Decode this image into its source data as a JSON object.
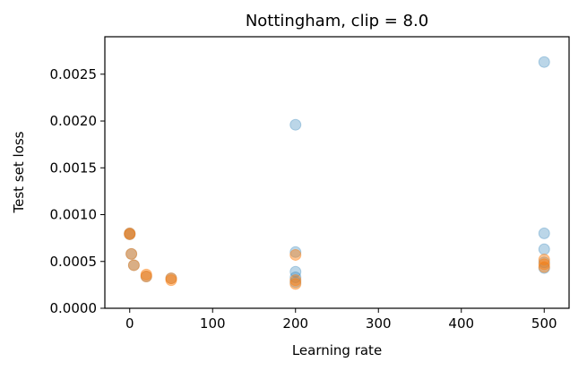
{
  "chart_data": {
    "type": "scatter",
    "title": "Nottingham, clip = 8.0",
    "xlabel": "Learning rate",
    "ylabel": "Test set loss",
    "xlim": [
      -30,
      530
    ],
    "ylim": [
      0,
      0.0029
    ],
    "xticks": [
      0,
      100,
      200,
      300,
      400,
      500
    ],
    "xtick_labels": [
      "0",
      "100",
      "200",
      "300",
      "400",
      "500"
    ],
    "yticks": [
      0,
      0.0005,
      0.001,
      0.0015,
      0.002,
      0.0025
    ],
    "ytick_labels": [
      "0.0000",
      "0.0005",
      "0.0010",
      "0.0015",
      "0.0020",
      "0.0025"
    ],
    "grid": false,
    "legend": "none",
    "series": [
      {
        "color": "#1f77b4",
        "opacity": 0.3,
        "points": [
          {
            "x": 0,
            "y": 0.0008
          },
          {
            "x": 0,
            "y": 0.00079
          },
          {
            "x": 2,
            "y": 0.00058
          },
          {
            "x": 5,
            "y": 0.00046
          },
          {
            "x": 20,
            "y": 0.00034
          },
          {
            "x": 50,
            "y": 0.00032
          },
          {
            "x": 200,
            "y": 0.00196
          },
          {
            "x": 200,
            "y": 0.0006
          },
          {
            "x": 200,
            "y": 0.00039
          },
          {
            "x": 200,
            "y": 0.00033
          },
          {
            "x": 200,
            "y": 0.00028
          },
          {
            "x": 500,
            "y": 0.00263
          },
          {
            "x": 500,
            "y": 0.0008
          },
          {
            "x": 500,
            "y": 0.00063
          },
          {
            "x": 500,
            "y": 0.00049
          },
          {
            "x": 500,
            "y": 0.00043
          }
        ]
      },
      {
        "color": "#ff7f0e",
        "opacity": 0.45,
        "points": [
          {
            "x": 0,
            "y": 0.0008
          },
          {
            "x": 0,
            "y": 0.00079
          },
          {
            "x": 2,
            "y": 0.00058
          },
          {
            "x": 5,
            "y": 0.00046
          },
          {
            "x": 20,
            "y": 0.00036
          },
          {
            "x": 20,
            "y": 0.00034
          },
          {
            "x": 50,
            "y": 0.00032
          },
          {
            "x": 50,
            "y": 0.0003
          },
          {
            "x": 200,
            "y": 0.00057
          },
          {
            "x": 200,
            "y": 0.0003
          },
          {
            "x": 200,
            "y": 0.00026
          },
          {
            "x": 500,
            "y": 0.00052
          },
          {
            "x": 500,
            "y": 0.00047
          },
          {
            "x": 500,
            "y": 0.00044
          }
        ]
      }
    ]
  }
}
